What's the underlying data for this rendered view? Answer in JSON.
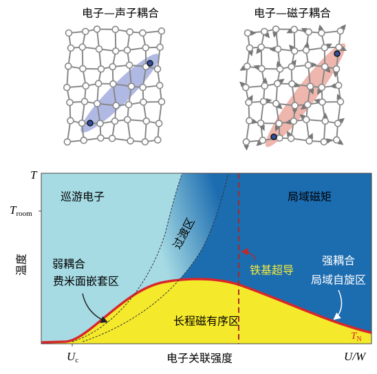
{
  "panels": {
    "phonon_title": "电子—声子耦合",
    "magnon_title": "电子—磁子耦合"
  },
  "axes": {
    "y_top": "T",
    "y_room": {
      "main": "T",
      "sub": "room"
    },
    "y_label": "温度",
    "x_uc": {
      "main": "U",
      "sub": "c"
    },
    "x_label": "电子关联强度",
    "x_end": "U/W"
  },
  "regions": {
    "itinerant": "巡游电子",
    "local_moment": "局域磁矩",
    "crossover": "过渡区",
    "weak_1": "弱耦合",
    "weak_2": "费米面嵌套区",
    "iron_sc": "铁基超导",
    "strong_1": "强耦合",
    "strong_2": "局域自旋区",
    "long_range": "长程磁有序区",
    "tn": {
      "main": "T",
      "sub": "N"
    }
  }
}
